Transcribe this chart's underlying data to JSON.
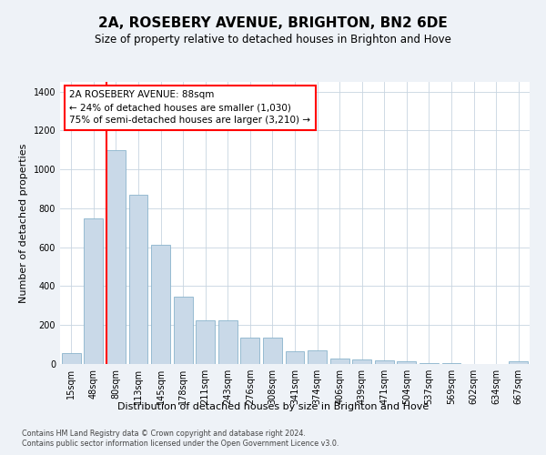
{
  "title": "2A, ROSEBERY AVENUE, BRIGHTON, BN2 6DE",
  "subtitle": "Size of property relative to detached houses in Brighton and Hove",
  "xlabel": "Distribution of detached houses by size in Brighton and Hove",
  "ylabel": "Number of detached properties",
  "footnote1": "Contains HM Land Registry data © Crown copyright and database right 2024.",
  "footnote2": "Contains public sector information licensed under the Open Government Licence v3.0.",
  "bar_labels": [
    "15sqm",
    "48sqm",
    "80sqm",
    "113sqm",
    "145sqm",
    "178sqm",
    "211sqm",
    "243sqm",
    "276sqm",
    "308sqm",
    "341sqm",
    "374sqm",
    "406sqm",
    "439sqm",
    "471sqm",
    "504sqm",
    "537sqm",
    "569sqm",
    "602sqm",
    "634sqm",
    "667sqm"
  ],
  "bar_values": [
    55,
    750,
    1100,
    870,
    615,
    345,
    225,
    225,
    135,
    135,
    65,
    70,
    30,
    25,
    18,
    12,
    5,
    3,
    1,
    1,
    12
  ],
  "bar_color": "#c9d9e8",
  "bar_edgecolor": "#8ab4cc",
  "vline_index": 2,
  "annotation_text": "2A ROSEBERY AVENUE: 88sqm\n← 24% of detached houses are smaller (1,030)\n75% of semi-detached houses are larger (3,210) →",
  "annotation_box_color": "white",
  "annotation_box_edgecolor": "red",
  "vline_color": "red",
  "ylim": [
    0,
    1450
  ],
  "yticks": [
    0,
    200,
    400,
    600,
    800,
    1000,
    1200,
    1400
  ],
  "background_color": "#eef2f7",
  "plot_background": "#ffffff",
  "grid_color": "#c8d4e0",
  "title_fontsize": 11,
  "subtitle_fontsize": 8.5,
  "ylabel_fontsize": 8,
  "xlabel_fontsize": 8,
  "tick_fontsize": 7,
  "annot_fontsize": 7.5,
  "footnote_fontsize": 5.8
}
